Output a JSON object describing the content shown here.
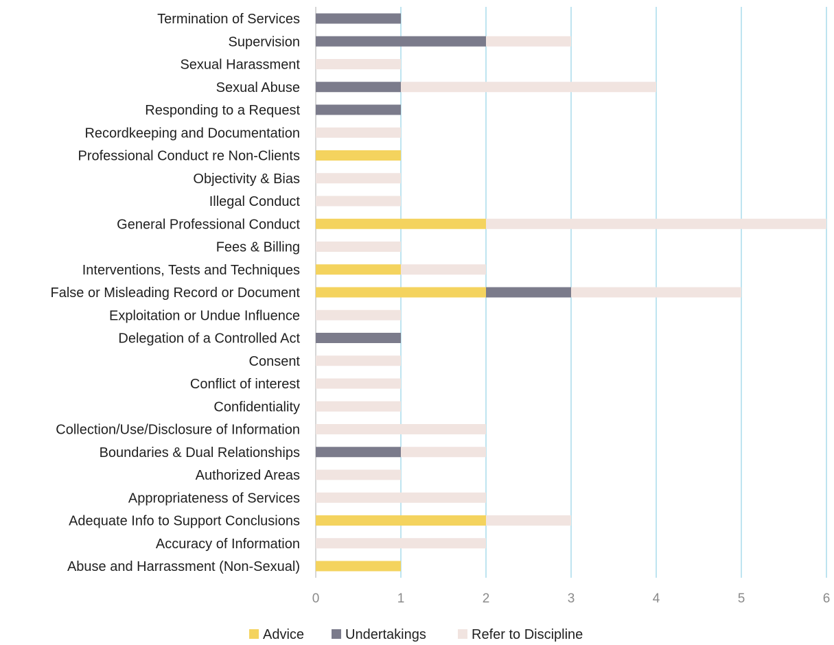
{
  "chart_data": {
    "type": "bar",
    "orientation": "horizontal",
    "stacked": true,
    "categories": [
      "Termination of Services",
      "Supervision",
      "Sexual Harassment",
      "Sexual Abuse",
      "Responding to a Request",
      "Recordkeeping and Documentation",
      "Professional Conduct re Non-Clients",
      "Objectivity & Bias",
      "Illegal Conduct",
      "General Professional Conduct",
      "Fees & Billing",
      "Interventions, Tests and Techniques",
      "False or Misleading Record or Document",
      "Exploitation or Undue Influence",
      "Delegation of a Controlled Act",
      "Consent",
      "Conflict of interest",
      "Confidentiality",
      "Collection/Use/Disclosure of Information",
      "Boundaries & Dual Relationships",
      "Authorized Areas",
      "Appropriateness of Services",
      "Adequate Info to Support Conclusions",
      "Accuracy of Information",
      "Abuse and Harrassment (Non-Sexual)"
    ],
    "series": [
      {
        "name": "Advice",
        "color": "#F4D35E",
        "values": [
          0,
          0,
          0,
          0,
          0,
          0,
          1,
          0,
          0,
          2,
          0,
          1,
          2,
          0,
          0,
          0,
          0,
          0,
          0,
          0,
          0,
          0,
          2,
          0,
          1
        ]
      },
      {
        "name": "Undertakings",
        "color": "#7B7B8B",
        "values": [
          1,
          2,
          0,
          1,
          1,
          0,
          0,
          0,
          0,
          0,
          0,
          0,
          1,
          0,
          1,
          0,
          0,
          0,
          0,
          1,
          0,
          0,
          0,
          0,
          0
        ]
      },
      {
        "name": "Refer to Discipline",
        "color": "#F1E4E0",
        "values": [
          0,
          1,
          1,
          3,
          0,
          1,
          0,
          1,
          1,
          4,
          1,
          1,
          2,
          1,
          0,
          1,
          1,
          1,
          2,
          1,
          1,
          2,
          1,
          2,
          0
        ]
      }
    ],
    "xlim": [
      0,
      6
    ],
    "xticks": [
      "0",
      "1",
      "2",
      "3",
      "4",
      "5",
      "6"
    ],
    "grid": true,
    "gridline_color": "#A9DCEB",
    "legend_position": "bottom",
    "title": "",
    "xlabel": "",
    "ylabel": ""
  }
}
